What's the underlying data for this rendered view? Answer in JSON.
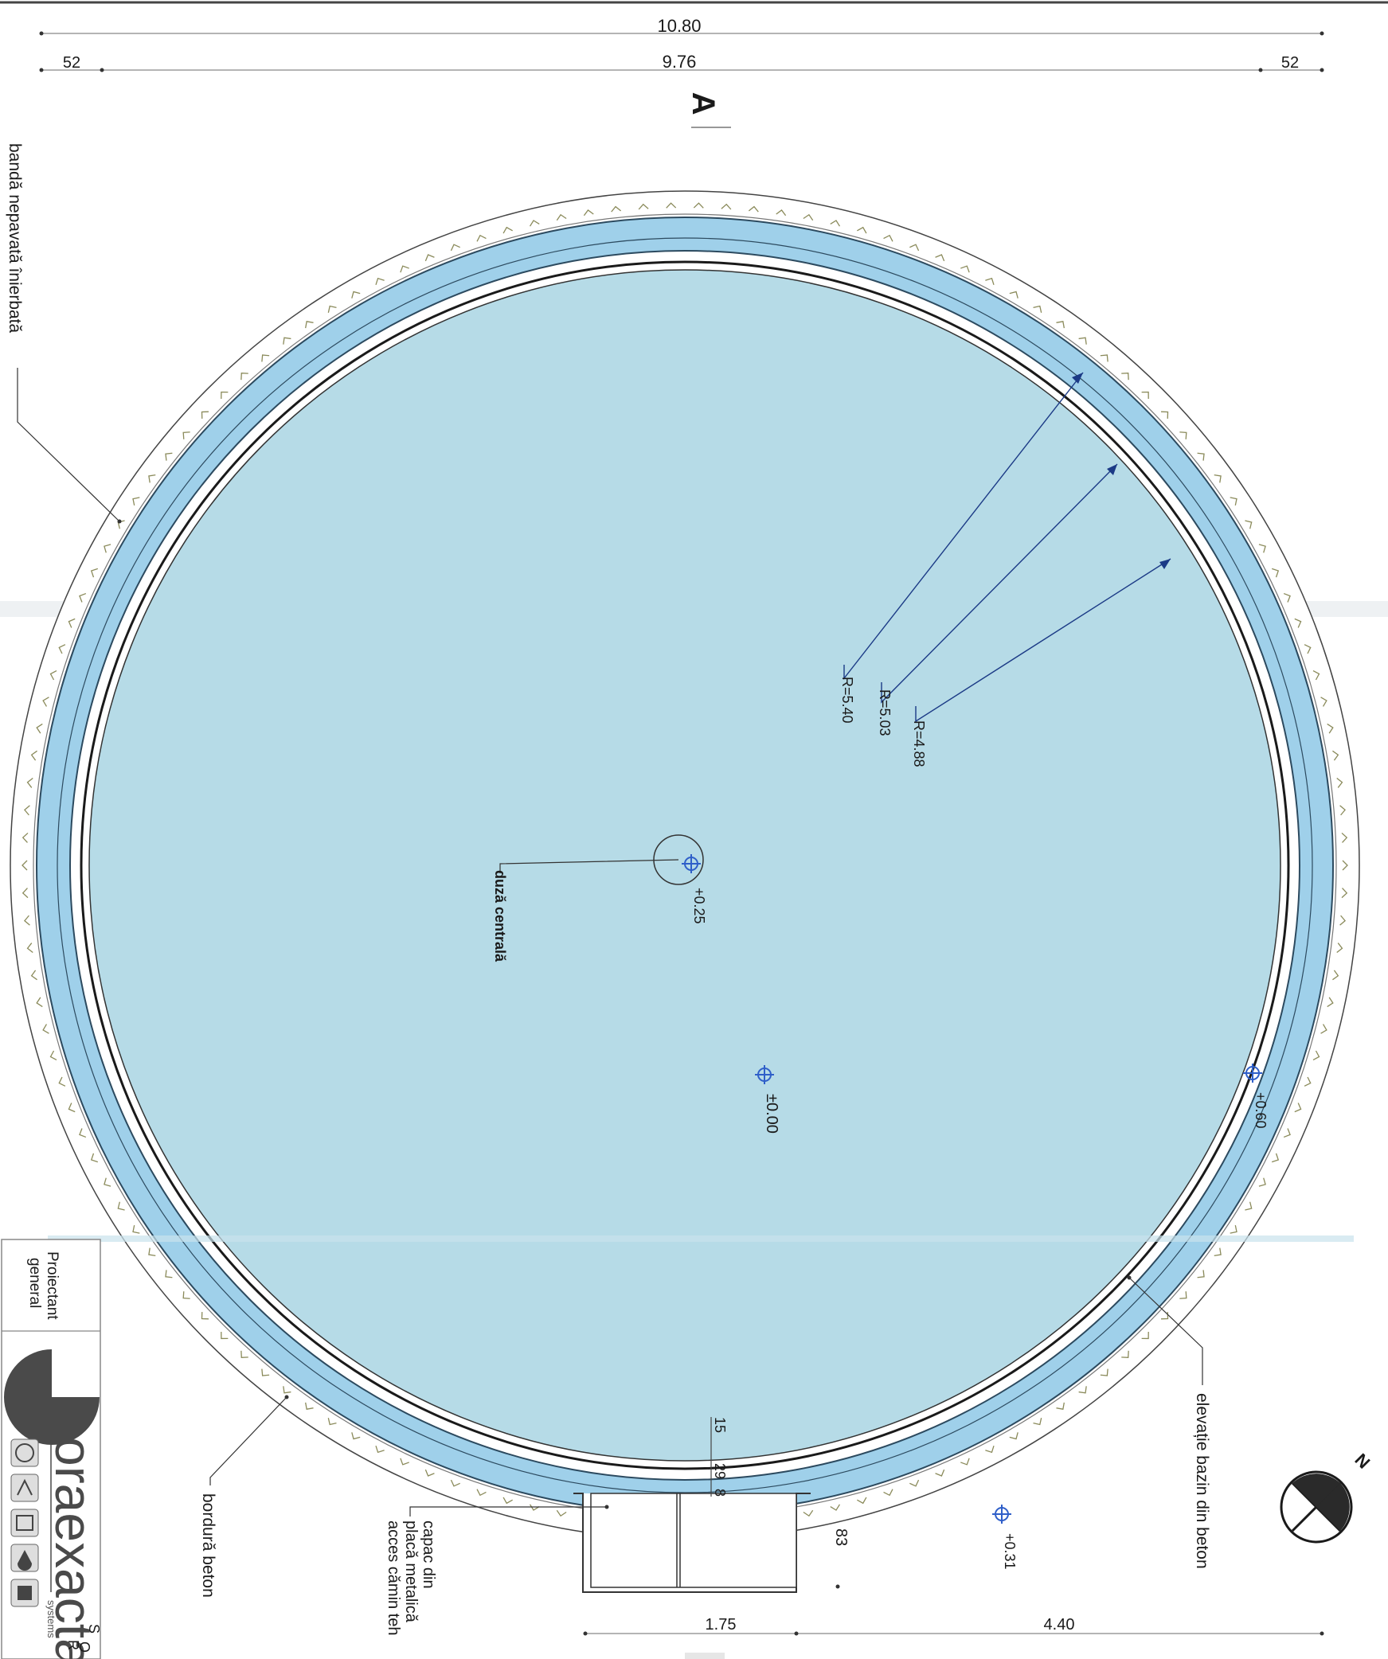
{
  "dimensions": {
    "overall_width": "10.80",
    "inner_width": "9.76",
    "left_offset": "52",
    "right_offset": "52",
    "section_marker": "A",
    "manhole_width": "1.75",
    "side_length": "4.40",
    "side_offset": "83",
    "ring_15": "15",
    "ring_29": "29",
    "ring_8": "8"
  },
  "radii": {
    "r1": "R=5.40",
    "r2": "R=5.03",
    "r3": "R=4.88"
  },
  "levels": {
    "nozzle": "+0.25",
    "basin": "±0.00",
    "rim": "+0.60",
    "outside": "+0.31"
  },
  "labels": {
    "grass_band": "bandă nepavată înierbată",
    "central_nozzle": "duză centrală",
    "concrete_wall": "elevație bazin din beton",
    "concrete_curb": "bordură beton",
    "cover_line1": "capac din",
    "cover_line2": "placă metalică",
    "cover_line3": "acces cămin teh"
  },
  "title_block": {
    "designer_line1": "Proiectant",
    "designer_line2": "general",
    "company": "oraexacta",
    "company_sub": "systems",
    "cut_text_1": "S",
    "cut_text_2": "R",
    "cut_text_3": "O"
  },
  "colors": {
    "water": "#b6dbe7",
    "ring_band": "#9fd0ea",
    "line": "#1f1f1f",
    "leader_blue": "#1b3a86",
    "level_marker": "#2f5fc9"
  }
}
